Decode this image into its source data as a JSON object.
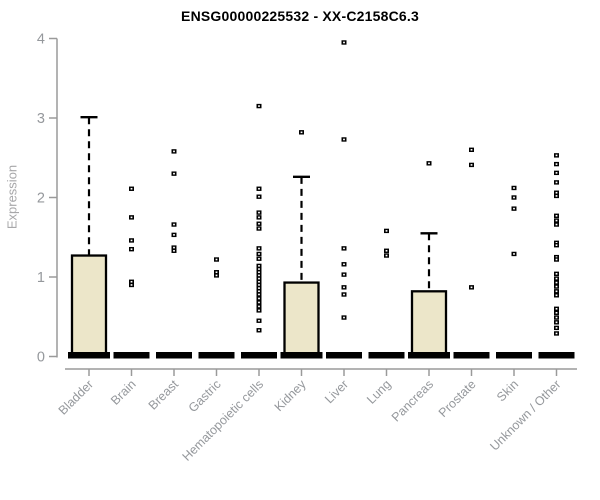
{
  "page": {
    "background": "#ffffff"
  },
  "chart_data": {
    "type": "box",
    "title": "ENSG00000225532 - XX-C2158C6.3",
    "ylabel": "Expression",
    "xlabel": "",
    "ylim": [
      0,
      4
    ],
    "yticks": [
      0,
      1,
      2,
      3,
      4
    ],
    "grid": false,
    "legend": false,
    "colors": {
      "box_fill": "#ece6c9",
      "box_border": "#000000",
      "whisker": "#000000",
      "outlier": "#000000",
      "axis": "#9a9a9a",
      "tick_label": "#95989c",
      "category_label": "#95989c",
      "title": "#000000",
      "ylabel": "#a7a7a9"
    },
    "categories": [
      "Bladder",
      "Brain",
      "Breast",
      "Gastric",
      "Hematopoietic cells",
      "Kidney",
      "Liver",
      "Lung",
      "Pancreas",
      "Prostate",
      "Skin",
      "Unknown / Other"
    ],
    "boxes": [
      {
        "category": "Bladder",
        "median": 0,
        "q1": 0,
        "q3": 1.27,
        "whisker_low": 0,
        "whisker_high": 3.01,
        "outliers": []
      },
      {
        "category": "Brain",
        "median": 0,
        "q1": 0,
        "q3": 0,
        "whisker_low": 0,
        "whisker_high": 0,
        "outliers": [
          2.11,
          1.75,
          1.46,
          1.35,
          0.94,
          0.9
        ]
      },
      {
        "category": "Breast",
        "median": 0,
        "q1": 0,
        "q3": 0,
        "whisker_low": 0,
        "whisker_high": 0,
        "outliers": [
          2.58,
          2.3,
          1.66,
          1.53,
          1.37,
          1.33
        ]
      },
      {
        "category": "Gastric",
        "median": 0,
        "q1": 0,
        "q3": 0,
        "whisker_low": 0,
        "whisker_high": 0,
        "outliers": [
          1.22,
          1.06,
          1.02
        ]
      },
      {
        "category": "Hematopoietic cells",
        "median": 0,
        "q1": 0,
        "q3": 0,
        "whisker_low": 0,
        "whisker_high": 0,
        "outliers": [
          3.15,
          2.11,
          2.01,
          1.81,
          1.75,
          1.67,
          1.61,
          1.36,
          1.29,
          1.23,
          1.14,
          1.1,
          1.06,
          1.02,
          0.98,
          0.94,
          0.9,
          0.86,
          0.82,
          0.78,
          0.73,
          0.68,
          0.63,
          0.58,
          0.45,
          0.33
        ]
      },
      {
        "category": "Kidney",
        "median": 0,
        "q1": 0,
        "q3": 0.93,
        "whisker_low": 0,
        "whisker_high": 2.26,
        "outliers": [
          2.82
        ]
      },
      {
        "category": "Liver",
        "median": 0,
        "q1": 0,
        "q3": 0,
        "whisker_low": 0,
        "whisker_high": 0,
        "outliers": [
          3.95,
          2.73,
          1.36,
          1.16,
          1.03,
          0.87,
          0.78,
          0.49
        ]
      },
      {
        "category": "Lung",
        "median": 0,
        "q1": 0,
        "q3": 0,
        "whisker_low": 0,
        "whisker_high": 0,
        "outliers": [
          1.58,
          1.33,
          1.27
        ]
      },
      {
        "category": "Pancreas",
        "median": 0,
        "q1": 0,
        "q3": 0.82,
        "whisker_low": 0,
        "whisker_high": 1.55,
        "outliers": [
          2.43
        ]
      },
      {
        "category": "Prostate",
        "median": 0,
        "q1": 0,
        "q3": 0,
        "whisker_low": 0,
        "whisker_high": 0,
        "outliers": [
          2.6,
          2.41,
          0.87
        ]
      },
      {
        "category": "Skin",
        "median": 0,
        "q1": 0,
        "q3": 0,
        "whisker_low": 0,
        "whisker_high": 0,
        "outliers": [
          2.12,
          2.0,
          1.86,
          1.29
        ]
      },
      {
        "category": "Unknown / Other",
        "median": 0,
        "q1": 0,
        "q3": 0,
        "whisker_low": 0,
        "whisker_high": 0,
        "outliers": [
          2.53,
          2.42,
          2.31,
          2.19,
          2.06,
          2.02,
          1.77,
          1.71,
          1.66,
          1.43,
          1.4,
          1.25,
          1.22,
          1.04,
          0.98,
          0.93,
          0.88,
          0.82,
          0.77,
          0.6,
          0.55,
          0.49,
          0.43,
          0.36,
          0.29
        ]
      }
    ]
  }
}
